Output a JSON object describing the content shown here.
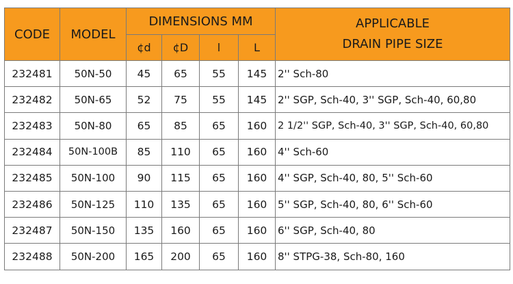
{
  "header": {
    "code": "CODE",
    "model": "MODEL",
    "dimensions": "DIMENSIONS MM",
    "applicable_line1": "APPLICABLE",
    "applicable_line2": "DRAIN PIPE SIZE",
    "sub_d": "¢d",
    "sub_D": "¢D",
    "sub_l": "l",
    "sub_L": "L"
  },
  "rows": [
    {
      "code": "232481",
      "model": "50N-50",
      "d": "45",
      "D": "65",
      "l": "55",
      "L": "145",
      "pipe": "2'' Sch-80"
    },
    {
      "code": "232482",
      "model": "50N-65",
      "d": "52",
      "D": "75",
      "l": "55",
      "L": "145",
      "pipe": "2'' SGP, Sch-40, 3'' SGP, Sch-40, 60,80"
    },
    {
      "code": "232483",
      "model": "50N-80",
      "d": "65",
      "D": "85",
      "l": "65",
      "L": "160",
      "pipe": "2  1/2'' SGP, Sch-40, 3'' SGP, Sch-40, 60,80"
    },
    {
      "code": "232484",
      "model": "50N-100B",
      "d": "85",
      "D": "110",
      "l": "65",
      "L": "160",
      "pipe": "4'' Sch-60"
    },
    {
      "code": "232485",
      "model": "50N-100",
      "d": "90",
      "D": "115",
      "l": "65",
      "L": "160",
      "pipe": "4'' SGP, Sch-40, 80, 5'' Sch-60"
    },
    {
      "code": "232486",
      "model": "50N-125",
      "d": "110",
      "D": "135",
      "l": "65",
      "L": "160",
      "pipe": "5'' SGP, Sch-40, 80, 6'' Sch-60"
    },
    {
      "code": "232487",
      "model": "50N-150",
      "d": "135",
      "D": "160",
      "l": "65",
      "L": "160",
      "pipe": "6'' SGP, Sch-40, 80"
    },
    {
      "code": "232488",
      "model": "50N-200",
      "d": "165",
      "D": "200",
      "l": "65",
      "L": "160",
      "pipe": "8'' STPG-38, Sch-80, 160"
    }
  ],
  "colors": {
    "header_bg": "#f79a1e",
    "border": "#7a7a7a"
  }
}
